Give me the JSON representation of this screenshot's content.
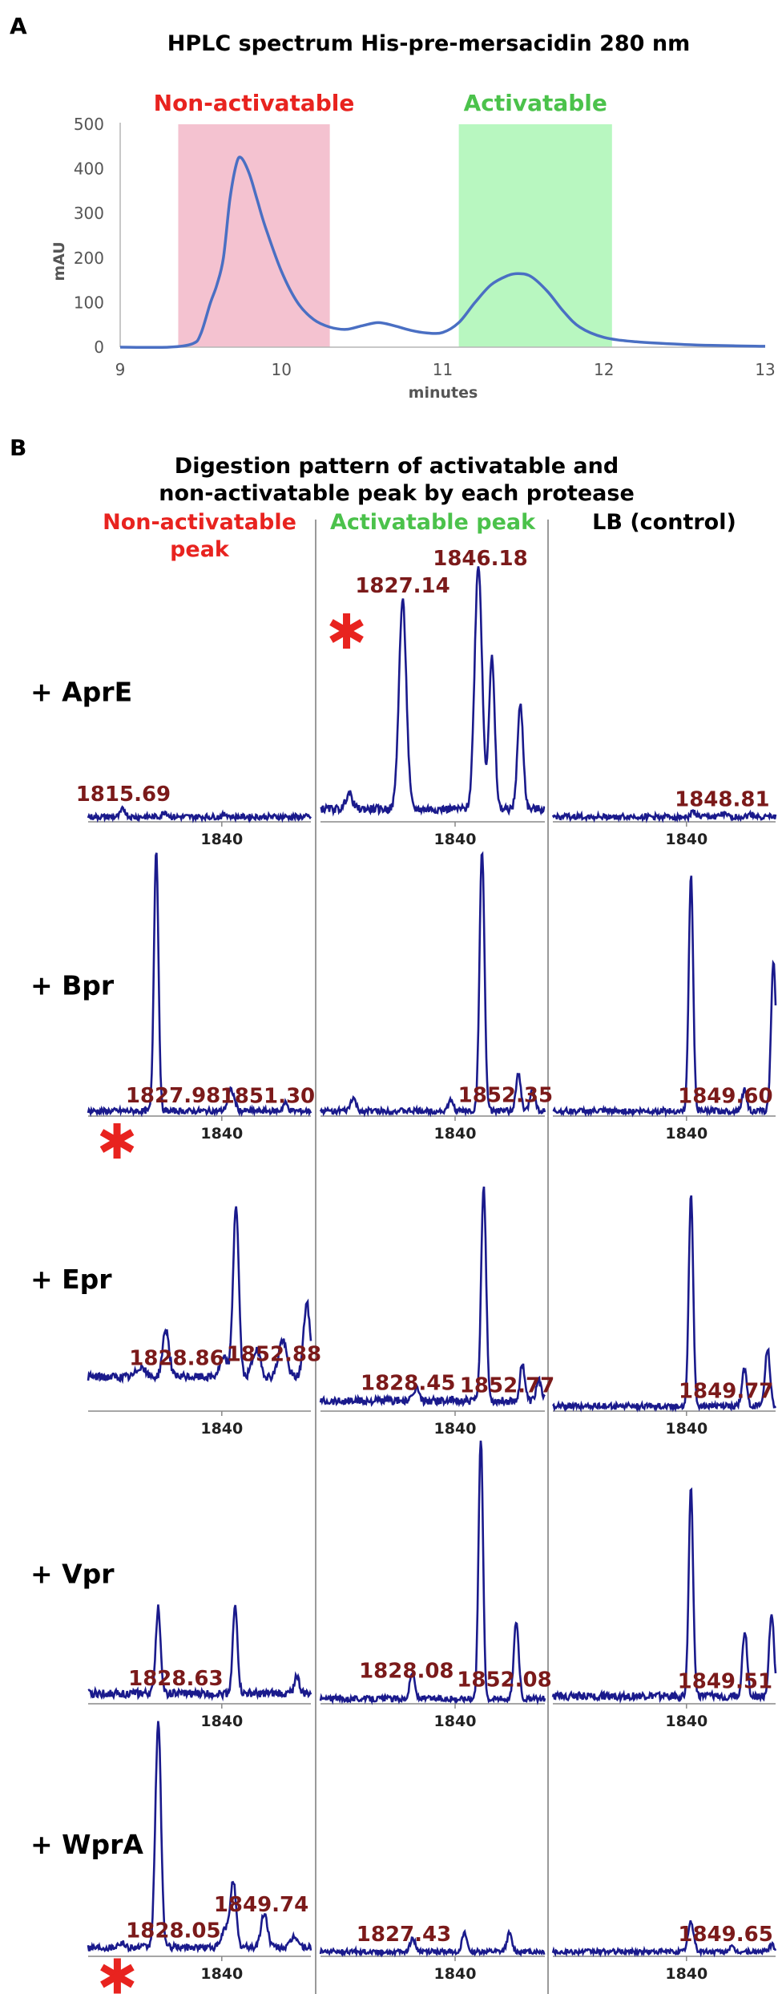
{
  "colors": {
    "hplc_line": "#4a6fc3",
    "non_activatable_fill": "#f4c2d0",
    "activatable_fill": "#b8f7c0",
    "non_activatable_text": "#e8231f",
    "activatable_text": "#4bc24b",
    "spectrum_line": "#1a1a8c",
    "peak_label": "#7b1a1a",
    "star": "#e8231f",
    "axis": "#888888"
  },
  "panel_a": {
    "letter": "A",
    "chart_data": {
      "type": "line",
      "title": "HPLC spectrum His-pre-mersacidin 280 nm",
      "xlabel": "minutes",
      "ylabel": "mAU",
      "xlim": [
        9,
        13
      ],
      "ylim": [
        0,
        500
      ],
      "x_ticks": [
        "9",
        "10",
        "11",
        "12",
        "13"
      ],
      "y_ticks": [
        "0",
        "100",
        "200",
        "300",
        "400",
        "500"
      ],
      "regions": [
        {
          "label": "Non-activatable",
          "x_start": 9.36,
          "x_end": 10.3
        },
        {
          "label": "Activatable",
          "x_start": 11.1,
          "x_end": 12.05
        }
      ],
      "series": [
        {
          "x": [
            9.0,
            9.3,
            9.45,
            9.5,
            9.56,
            9.6,
            9.64,
            9.68,
            9.72,
            9.75,
            9.8,
            9.85,
            9.9,
            10.0,
            10.1,
            10.2,
            10.3,
            10.4,
            10.5,
            10.6,
            10.7,
            10.8,
            10.9,
            11.0,
            11.1,
            11.2,
            11.3,
            11.4,
            11.47,
            11.55,
            11.65,
            11.75,
            11.85,
            12.0,
            12.2,
            12.5,
            12.8,
            13.0
          ],
          "y": [
            0,
            0,
            8,
            30,
            100,
            140,
            200,
            330,
            410,
            425,
            390,
            330,
            270,
            170,
            100,
            62,
            45,
            40,
            48,
            55,
            48,
            38,
            32,
            33,
            55,
            100,
            140,
            160,
            165,
            158,
            125,
            80,
            45,
            22,
            12,
            6,
            3,
            2
          ]
        }
      ]
    }
  },
  "panel_b": {
    "letter": "B",
    "title_line1": "Digestion pattern of activatable and",
    "title_line2": "non-activatable peak by each protease",
    "columns": [
      {
        "head_line1": "Non-activatable",
        "head_line2": "peak"
      },
      {
        "head_line1": "Activatable peak",
        "head_line2": ""
      },
      {
        "head_line1": "LB (control)",
        "head_line2": ""
      }
    ],
    "rows": [
      {
        "label": "+ AprE"
      },
      {
        "label": "+ Bpr"
      },
      {
        "label": "+ Epr"
      },
      {
        "label": "+ Vpr"
      },
      {
        "label": "+ WprA"
      }
    ],
    "chart_data": {
      "type": "line",
      "xlabel": "",
      "ylabel": "",
      "x_tick": "1840",
      "x_tick_value": 1840,
      "xlim": [
        1807,
        1862
      ],
      "ylim": [
        0,
        100
      ],
      "panels": [
        {
          "row": "+ AprE",
          "column": "Non-activatable peak",
          "star": false,
          "labels": [
            {
              "text": "1815.69",
              "mz": 1815.69
            }
          ],
          "baseline": 1,
          "peaks": [
            [
              1815.69,
              3,
              0.6
            ],
            [
              1826,
              2,
              0.6
            ],
            [
              1841,
              1,
              0.6
            ]
          ]
        },
        {
          "row": "+ AprE",
          "column": "Activatable peak",
          "star": true,
          "labels": [
            {
              "text": "1827.14",
              "mz": 1827.14
            },
            {
              "text": "1846.18",
              "mz": 1846.18
            }
          ],
          "baseline": 4,
          "peaks": [
            [
              1814,
              6,
              0.8
            ],
            [
              1827.14,
              80,
              0.9
            ],
            [
              1845.7,
              94,
              0.9
            ],
            [
              1849,
              58,
              0.7
            ],
            [
              1856,
              40,
              0.7
            ]
          ]
        },
        {
          "row": "+ AprE",
          "column": "LB (control)",
          "star": false,
          "labels": [
            {
              "text": "1848.81",
              "mz": 1848.81
            }
          ],
          "baseline": 1,
          "peaks": [
            [
              1841.7,
              2,
              0.6
            ],
            [
              1849,
              1,
              0.6
            ],
            [
              1856,
              1,
              0.6
            ]
          ]
        },
        {
          "row": "+ Bpr",
          "column": "Non-activatable peak",
          "star": true,
          "labels": [
            {
              "text": "1827.98",
              "mz": 1827.98
            },
            {
              "text": "1851.30",
              "mz": 1851.3
            }
          ],
          "baseline": 1,
          "peaks": [
            [
              1823.8,
              100,
              0.55
            ],
            [
              1842.3,
              8,
              0.8
            ],
            [
              1855.7,
              3,
              0.6
            ]
          ]
        },
        {
          "row": "+ Bpr",
          "column": "Activatable peak",
          "star": false,
          "labels": [
            {
              "text": "1852.35",
              "mz": 1852.35
            }
          ],
          "baseline": 1,
          "peaks": [
            [
              1815,
              5,
              0.6
            ],
            [
              1839,
              4,
              0.6
            ],
            [
              1846.6,
              100,
              0.6
            ],
            [
              1855.5,
              14,
              0.6
            ],
            [
              1859,
              9,
              0.6
            ]
          ]
        },
        {
          "row": "+ Bpr",
          "column": "LB (control)",
          "star": false,
          "labels": [
            {
              "text": "1849.60",
              "mz": 1849.6
            }
          ],
          "baseline": 1,
          "peaks": [
            [
              1841.1,
              90,
              0.55
            ],
            [
              1854.3,
              8,
              0.6
            ],
            [
              1861.5,
              57,
              0.6
            ]
          ]
        },
        {
          "row": "+ Epr",
          "column": "Non-activatable peak",
          "star": false,
          "labels": [
            {
              "text": "1852.88",
              "mz": 1852.88
            },
            {
              "text": "1828.86",
              "mz": 1828.86
            }
          ],
          "baseline": 12,
          "peaks": [
            [
              1820,
              4,
              1.0
            ],
            [
              1826.2,
              18,
              0.8
            ],
            [
              1840.5,
              7,
              1.0
            ],
            [
              1843.5,
              65,
              0.7
            ],
            [
              1848.5,
              10,
              1.0
            ],
            [
              1855,
              14,
              1.0
            ],
            [
              1861,
              28,
              0.8
            ]
          ]
        },
        {
          "row": "+ Epr",
          "column": "Activatable peak",
          "star": false,
          "labels": [
            {
              "text": "1852.77",
              "mz": 1852.77
            },
            {
              "text": "1828.45",
              "mz": 1828.45
            }
          ],
          "baseline": 3,
          "peaks": [
            [
              1830.5,
              5,
              0.6
            ],
            [
              1847,
              82,
              0.6
            ],
            [
              1856.5,
              14,
              0.6
            ],
            [
              1860.5,
              8,
              0.6
            ]
          ]
        },
        {
          "row": "+ Epr",
          "column": "LB (control)",
          "star": false,
          "labels": [
            {
              "text": "1849.77",
              "mz": 1849.77
            }
          ],
          "baseline": 1,
          "peaks": [
            [
              1841.1,
              80,
              0.55
            ],
            [
              1854.3,
              14,
              0.6
            ],
            [
              1860,
              22,
              0.6
            ]
          ]
        },
        {
          "row": "+ Vpr",
          "column": "Non-activatable peak",
          "star": false,
          "labels": [
            {
              "text": "1828.63",
              "mz": 1828.63
            }
          ],
          "baseline": 3,
          "peaks": [
            [
              1824.3,
              33,
              0.6
            ],
            [
              1843.3,
              33,
              0.6
            ],
            [
              1858.5,
              7,
              0.6
            ]
          ]
        },
        {
          "row": "+ Vpr",
          "column": "Activatable peak",
          "star": false,
          "labels": [
            {
              "text": "1852.08",
              "mz": 1852.08
            },
            {
              "text": "1828.08",
              "mz": 1828.08
            }
          ],
          "baseline": 1,
          "peaks": [
            [
              1829.5,
              10,
              0.6
            ],
            [
              1846.3,
              100,
              0.55
            ],
            [
              1855,
              30,
              0.6
            ]
          ]
        },
        {
          "row": "+ Vpr",
          "column": "LB (control)",
          "star": false,
          "labels": [
            {
              "text": "1849.51",
              "mz": 1849.51
            }
          ],
          "baseline": 2,
          "peaks": [
            [
              1841.1,
              80,
              0.55
            ],
            [
              1854.4,
              25,
              0.6
            ],
            [
              1861,
              32,
              0.6
            ]
          ]
        },
        {
          "row": "+ WprA",
          "column": "Non-activatable peak",
          "star": true,
          "labels": [
            {
              "text": "1828.05",
              "mz": 1828.05
            },
            {
              "text": "1849.74",
              "mz": 1849.74
            }
          ],
          "baseline": 3,
          "peaks": [
            [
              1815,
              2,
              0.8
            ],
            [
              1824.3,
              100,
              0.7
            ],
            [
              1840.8,
              8,
              0.8
            ],
            [
              1842.8,
              30,
              0.7
            ],
            [
              1850.5,
              15,
              0.8
            ],
            [
              1858,
              5,
              0.8
            ]
          ]
        },
        {
          "row": "+ WprA",
          "column": "Activatable peak",
          "star": false,
          "labels": [
            {
              "text": "1827.43",
              "mz": 1827.43
            }
          ],
          "baseline": 1,
          "peaks": [
            [
              1829.6,
              6,
              0.6
            ],
            [
              1842.3,
              8,
              0.6
            ],
            [
              1853.3,
              8,
              0.6
            ]
          ]
        },
        {
          "row": "+ WprA",
          "column": "LB (control)",
          "star": false,
          "labels": [
            {
              "text": "1849.65",
              "mz": 1849.65
            }
          ],
          "baseline": 1,
          "peaks": [
            [
              1841.1,
              13,
              0.7
            ],
            [
              1851,
              2,
              0.6
            ],
            [
              1861,
              3,
              0.6
            ]
          ]
        }
      ]
    }
  }
}
